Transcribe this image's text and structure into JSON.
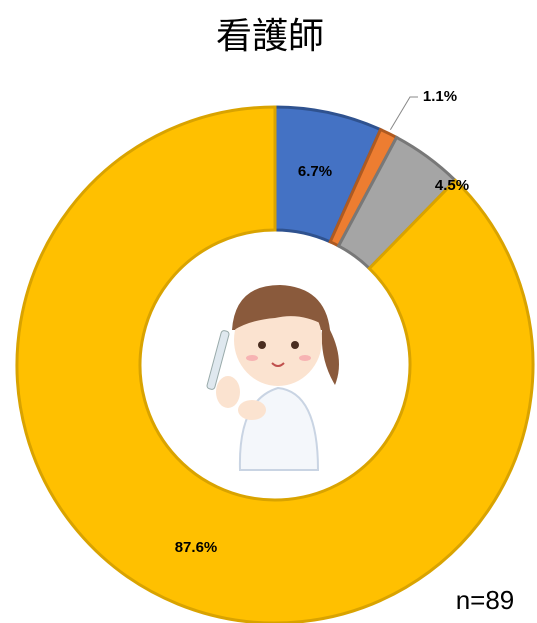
{
  "chart_data": {
    "type": "donut",
    "title": "看護師",
    "values": [
      6.7,
      1.1,
      4.5,
      87.6
    ],
    "value_labels": [
      "6.7%",
      "1.1%",
      "4.5%",
      "87.6%"
    ],
    "colors": [
      "#4472c4",
      "#ed7d31",
      "#a5a5a5",
      "#ffc000"
    ],
    "annotation": "n=89"
  }
}
